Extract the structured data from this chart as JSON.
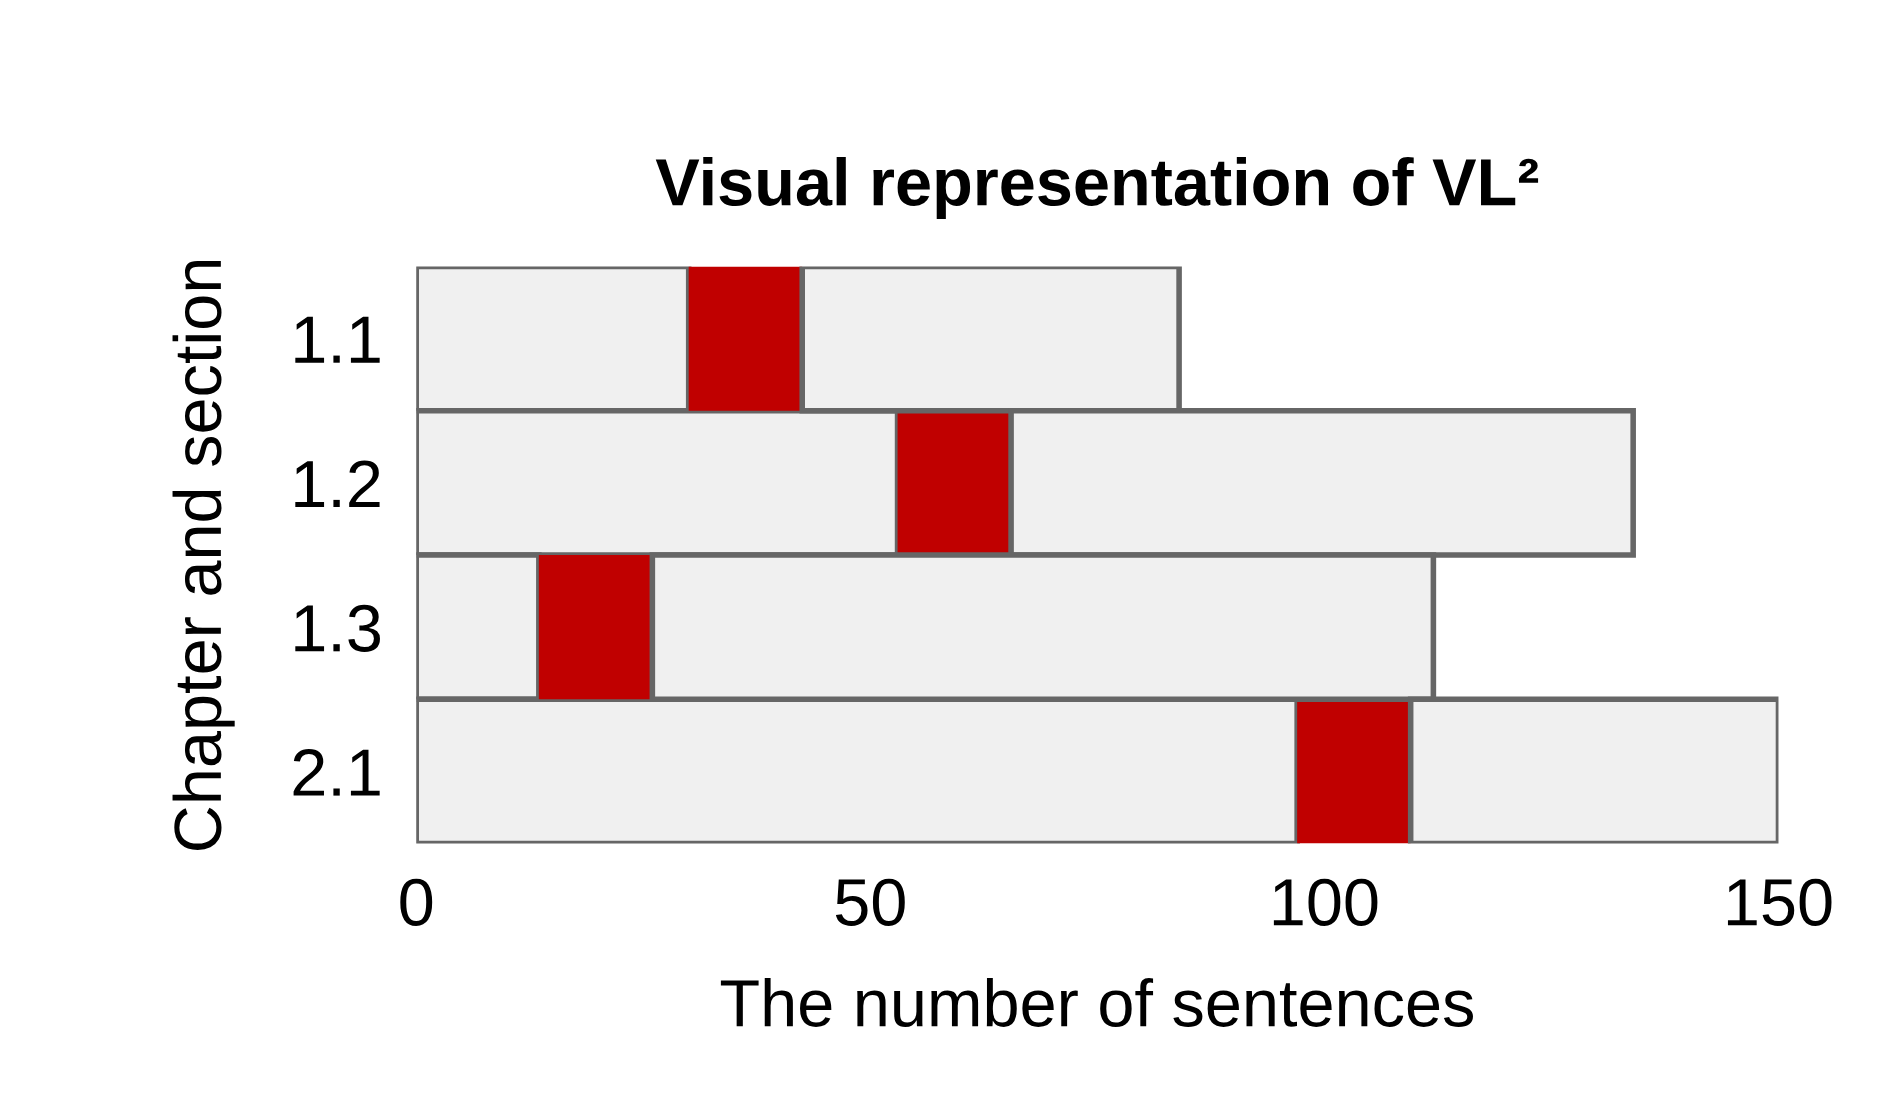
{
  "chart_data": {
    "type": "bar",
    "orientation": "horizontal",
    "stacked": true,
    "title": "Visual representation of VL²",
    "xlabel": "The number of sentences",
    "ylabel": "Chapter and section",
    "categories": [
      "1.1",
      "1.2",
      "1.3",
      "2.1"
    ],
    "series": [
      {
        "color": "#f0f0f0",
        "values": [
          30,
          53,
          13.5,
          97
        ]
      },
      {
        "color": "#c00000",
        "values": [
          12.5,
          12.5,
          12.5,
          12.5
        ]
      },
      {
        "color": "#f0f0f0",
        "values": [
          41.5,
          68.5,
          86,
          40.5
        ]
      }
    ],
    "xlim": [
      0,
      150
    ],
    "xticks": [
      0,
      50,
      100,
      150
    ],
    "grid": false,
    "legend": false
  }
}
